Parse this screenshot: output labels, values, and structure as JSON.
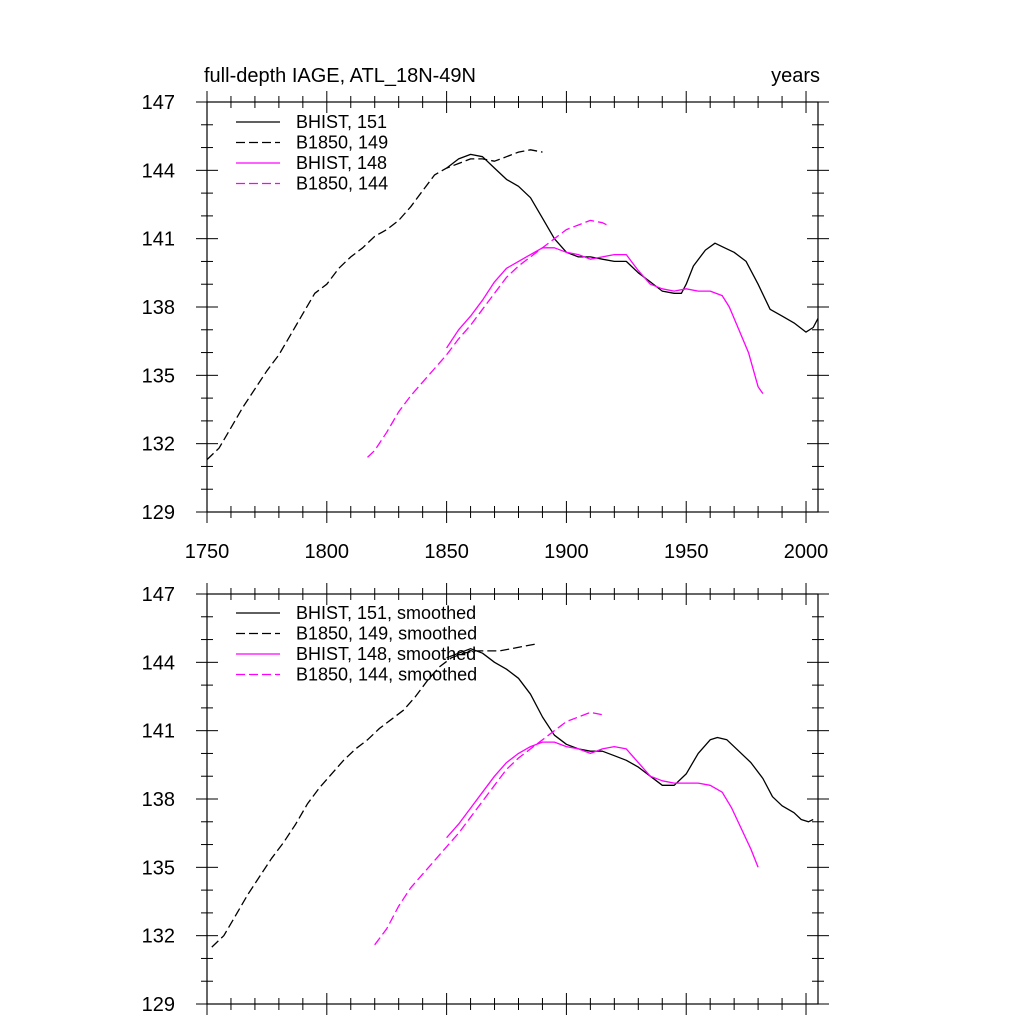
{
  "figure": {
    "title_left": "full-depth IAGE, ATL_18N-49N",
    "title_right": "years"
  },
  "colors": {
    "black": "#000000",
    "magenta": "#ff00ff"
  },
  "chart_data": [
    {
      "type": "line",
      "xlim": [
        1750,
        2005
      ],
      "ylim": [
        129,
        147
      ],
      "x_ticks": [
        1750,
        1800,
        1850,
        1900,
        1950,
        2000
      ],
      "x_tick_labels": [
        "1750",
        "1800",
        "1850",
        "1900",
        "1950",
        "2000"
      ],
      "y_ticks": [
        129,
        132,
        135,
        138,
        141,
        144,
        147
      ],
      "y_tick_labels": [
        "129",
        "132",
        "135",
        "138",
        "141",
        "144",
        "147"
      ],
      "grid": false,
      "legend_position": "top-left",
      "series": [
        {
          "name": "BHIST, 151",
          "color": "#000000",
          "dash": "solid",
          "points": [
            [
              1850,
              144.1
            ],
            [
              1855,
              144.5
            ],
            [
              1860,
              144.7
            ],
            [
              1865,
              144.6
            ],
            [
              1870,
              144.1
            ],
            [
              1875,
              143.6
            ],
            [
              1880,
              143.3
            ],
            [
              1885,
              142.8
            ],
            [
              1890,
              141.9
            ],
            [
              1895,
              141.0
            ],
            [
              1900,
              140.4
            ],
            [
              1905,
              140.2
            ],
            [
              1910,
              140.2
            ],
            [
              1915,
              140.1
            ],
            [
              1920,
              140.0
            ],
            [
              1925,
              140.0
            ],
            [
              1930,
              139.5
            ],
            [
              1935,
              139.1
            ],
            [
              1940,
              138.7
            ],
            [
              1945,
              138.6
            ],
            [
              1948,
              138.6
            ],
            [
              1950,
              139.0
            ],
            [
              1953,
              139.8
            ],
            [
              1958,
              140.5
            ],
            [
              1962,
              140.8
            ],
            [
              1966,
              140.6
            ],
            [
              1970,
              140.4
            ],
            [
              1975,
              140.0
            ],
            [
              1980,
              139.0
            ],
            [
              1985,
              137.9
            ],
            [
              1990,
              137.6
            ],
            [
              1995,
              137.3
            ],
            [
              2000,
              136.9
            ],
            [
              2003,
              137.1
            ],
            [
              2005,
              137.5
            ]
          ]
        },
        {
          "name": "B1850, 149",
          "color": "#000000",
          "dash": "dashed",
          "points": [
            [
              1750,
              131.3
            ],
            [
              1755,
              131.8
            ],
            [
              1760,
              132.7
            ],
            [
              1765,
              133.6
            ],
            [
              1770,
              134.4
            ],
            [
              1775,
              135.2
            ],
            [
              1780,
              135.9
            ],
            [
              1785,
              136.8
            ],
            [
              1790,
              137.7
            ],
            [
              1795,
              138.6
            ],
            [
              1800,
              139.0
            ],
            [
              1805,
              139.7
            ],
            [
              1810,
              140.2
            ],
            [
              1815,
              140.6
            ],
            [
              1820,
              141.1
            ],
            [
              1825,
              141.4
            ],
            [
              1830,
              141.8
            ],
            [
              1835,
              142.4
            ],
            [
              1840,
              143.1
            ],
            [
              1845,
              143.8
            ],
            [
              1850,
              144.1
            ],
            [
              1855,
              144.3
            ],
            [
              1860,
              144.5
            ],
            [
              1865,
              144.5
            ],
            [
              1870,
              144.4
            ],
            [
              1875,
              144.6
            ],
            [
              1880,
              144.8
            ],
            [
              1885,
              144.9
            ],
            [
              1890,
              144.8
            ]
          ]
        },
        {
          "name": "BHIST, 148",
          "color": "#ff00ff",
          "dash": "solid",
          "points": [
            [
              1850,
              136.2
            ],
            [
              1855,
              137.0
            ],
            [
              1860,
              137.6
            ],
            [
              1865,
              138.3
            ],
            [
              1870,
              139.1
            ],
            [
              1875,
              139.7
            ],
            [
              1880,
              140.0
            ],
            [
              1885,
              140.3
            ],
            [
              1890,
              140.6
            ],
            [
              1895,
              140.6
            ],
            [
              1900,
              140.4
            ],
            [
              1905,
              140.3
            ],
            [
              1910,
              140.1
            ],
            [
              1915,
              140.2
            ],
            [
              1920,
              140.3
            ],
            [
              1925,
              140.3
            ],
            [
              1930,
              139.6
            ],
            [
              1935,
              139.0
            ],
            [
              1940,
              138.8
            ],
            [
              1945,
              138.7
            ],
            [
              1950,
              138.8
            ],
            [
              1955,
              138.7
            ],
            [
              1960,
              138.7
            ],
            [
              1965,
              138.5
            ],
            [
              1968,
              138.0
            ],
            [
              1972,
              137.0
            ],
            [
              1976,
              136.0
            ],
            [
              1980,
              134.5
            ],
            [
              1982,
              134.2
            ]
          ]
        },
        {
          "name": "B1850, 144",
          "color": "#ff00ff",
          "dash": "dashed",
          "points": [
            [
              1817,
              131.4
            ],
            [
              1820,
              131.7
            ],
            [
              1825,
              132.5
            ],
            [
              1830,
              133.4
            ],
            [
              1835,
              134.1
            ],
            [
              1840,
              134.7
            ],
            [
              1845,
              135.3
            ],
            [
              1850,
              135.9
            ],
            [
              1855,
              136.6
            ],
            [
              1860,
              137.2
            ],
            [
              1865,
              137.9
            ],
            [
              1870,
              138.6
            ],
            [
              1875,
              139.3
            ],
            [
              1880,
              139.8
            ],
            [
              1885,
              140.2
            ],
            [
              1890,
              140.6
            ],
            [
              1895,
              141.0
            ],
            [
              1900,
              141.4
            ],
            [
              1905,
              141.6
            ],
            [
              1910,
              141.8
            ],
            [
              1915,
              141.7
            ],
            [
              1917,
              141.6
            ]
          ]
        }
      ]
    },
    {
      "type": "line",
      "xlim": [
        1750,
        2005
      ],
      "ylim": [
        129,
        147
      ],
      "x_ticks": [
        1750,
        1800,
        1850,
        1900,
        1950,
        2000
      ],
      "y_ticks": [
        129,
        132,
        135,
        138,
        141,
        144,
        147
      ],
      "y_tick_labels": [
        "129",
        "132",
        "135",
        "138",
        "141",
        "144",
        "147"
      ],
      "grid": false,
      "legend_position": "top-left",
      "series": [
        {
          "name": "BHIST, 151, smoothed",
          "color": "#000000",
          "dash": "solid",
          "points": [
            [
              1850,
              144.2
            ],
            [
              1855,
              144.4
            ],
            [
              1860,
              144.6
            ],
            [
              1865,
              144.4
            ],
            [
              1870,
              144.0
            ],
            [
              1875,
              143.7
            ],
            [
              1880,
              143.3
            ],
            [
              1885,
              142.6
            ],
            [
              1890,
              141.6
            ],
            [
              1895,
              140.8
            ],
            [
              1900,
              140.4
            ],
            [
              1905,
              140.2
            ],
            [
              1910,
              140.1
            ],
            [
              1915,
              140.1
            ],
            [
              1920,
              139.9
            ],
            [
              1925,
              139.7
            ],
            [
              1930,
              139.4
            ],
            [
              1935,
              139.0
            ],
            [
              1940,
              138.6
            ],
            [
              1945,
              138.6
            ],
            [
              1950,
              139.1
            ],
            [
              1955,
              140.0
            ],
            [
              1960,
              140.6
            ],
            [
              1963,
              140.7
            ],
            [
              1967,
              140.6
            ],
            [
              1972,
              140.1
            ],
            [
              1977,
              139.6
            ],
            [
              1982,
              138.9
            ],
            [
              1986,
              138.1
            ],
            [
              1990,
              137.7
            ],
            [
              1995,
              137.4
            ],
            [
              1998,
              137.1
            ],
            [
              2001,
              137.0
            ],
            [
              2003,
              137.1
            ]
          ]
        },
        {
          "name": "B1850, 149, smoothed",
          "color": "#000000",
          "dash": "dashed",
          "points": [
            [
              1752,
              131.5
            ],
            [
              1757,
              132.0
            ],
            [
              1762,
              132.9
            ],
            [
              1767,
              133.8
            ],
            [
              1772,
              134.6
            ],
            [
              1777,
              135.4
            ],
            [
              1782,
              136.1
            ],
            [
              1787,
              136.9
            ],
            [
              1792,
              137.8
            ],
            [
              1797,
              138.5
            ],
            [
              1802,
              139.1
            ],
            [
              1807,
              139.7
            ],
            [
              1812,
              140.2
            ],
            [
              1817,
              140.6
            ],
            [
              1822,
              141.1
            ],
            [
              1827,
              141.5
            ],
            [
              1832,
              141.9
            ],
            [
              1837,
              142.5
            ],
            [
              1842,
              143.2
            ],
            [
              1847,
              143.8
            ],
            [
              1852,
              144.2
            ],
            [
              1857,
              144.4
            ],
            [
              1862,
              144.5
            ],
            [
              1867,
              144.5
            ],
            [
              1872,
              144.5
            ],
            [
              1877,
              144.6
            ],
            [
              1882,
              144.7
            ],
            [
              1887,
              144.8
            ]
          ]
        },
        {
          "name": "BHIST, 148, smoothed",
          "color": "#ff00ff",
          "dash": "solid",
          "points": [
            [
              1850,
              136.3
            ],
            [
              1855,
              136.9
            ],
            [
              1860,
              137.6
            ],
            [
              1865,
              138.3
            ],
            [
              1870,
              139.0
            ],
            [
              1875,
              139.6
            ],
            [
              1880,
              140.0
            ],
            [
              1885,
              140.3
            ],
            [
              1890,
              140.5
            ],
            [
              1895,
              140.5
            ],
            [
              1900,
              140.3
            ],
            [
              1905,
              140.2
            ],
            [
              1910,
              140.0
            ],
            [
              1915,
              140.2
            ],
            [
              1920,
              140.3
            ],
            [
              1925,
              140.2
            ],
            [
              1930,
              139.6
            ],
            [
              1935,
              139.0
            ],
            [
              1940,
              138.8
            ],
            [
              1945,
              138.7
            ],
            [
              1950,
              138.7
            ],
            [
              1955,
              138.7
            ],
            [
              1960,
              138.6
            ],
            [
              1965,
              138.3
            ],
            [
              1969,
              137.6
            ],
            [
              1973,
              136.7
            ],
            [
              1977,
              135.8
            ],
            [
              1980,
              135.0
            ]
          ]
        },
        {
          "name": "B1850, 144, smoothed",
          "color": "#ff00ff",
          "dash": "dashed",
          "points": [
            [
              1820,
              131.6
            ],
            [
              1825,
              132.3
            ],
            [
              1830,
              133.3
            ],
            [
              1835,
              134.1
            ],
            [
              1840,
              134.7
            ],
            [
              1845,
              135.3
            ],
            [
              1850,
              135.9
            ],
            [
              1855,
              136.5
            ],
            [
              1860,
              137.2
            ],
            [
              1865,
              137.9
            ],
            [
              1870,
              138.6
            ],
            [
              1875,
              139.3
            ],
            [
              1880,
              139.8
            ],
            [
              1885,
              140.2
            ],
            [
              1890,
              140.6
            ],
            [
              1895,
              141.0
            ],
            [
              1900,
              141.4
            ],
            [
              1905,
              141.6
            ],
            [
              1910,
              141.8
            ],
            [
              1915,
              141.7
            ]
          ]
        }
      ]
    }
  ]
}
